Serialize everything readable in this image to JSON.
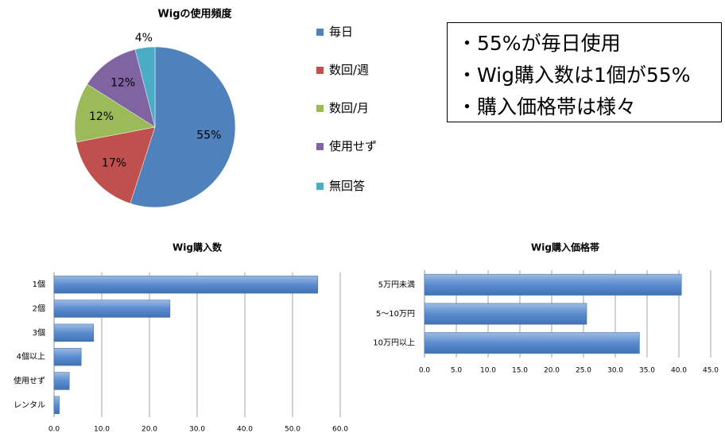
{
  "chart_data": [
    {
      "type": "pie",
      "title": "Wigの使用頻度",
      "categories": [
        "毎日",
        "数回/週",
        "数回/月",
        "使用せず",
        "無回答"
      ],
      "values": [
        55,
        17,
        12,
        12,
        4
      ],
      "value_labels": [
        "55%",
        "17%",
        "12%",
        "12%",
        "4%"
      ],
      "colors": [
        "#4f81bd",
        "#c0504d",
        "#9bbb59",
        "#8064a2",
        "#4bacc6"
      ],
      "legend": "right"
    },
    {
      "type": "bar",
      "orientation": "horizontal",
      "title": "Wig購入数",
      "categories": [
        "1個",
        "2個",
        "3個",
        "4個以上",
        "使用せず",
        "レンタル"
      ],
      "values": [
        55.3,
        24.3,
        8.3,
        5.7,
        3.2,
        1.1
      ],
      "color": "#4f81bd",
      "grid": true,
      "xlim": [
        0,
        60
      ],
      "xticks": [
        {
          "value": 0,
          "label": "0.0"
        },
        {
          "value": 10,
          "label": "10.0"
        },
        {
          "value": 20,
          "label": "20.0"
        },
        {
          "value": 30,
          "label": "30.0"
        },
        {
          "value": 40,
          "label": "40.0"
        },
        {
          "value": 50,
          "label": "50.0"
        },
        {
          "value": 60,
          "label": "60.0"
        }
      ]
    },
    {
      "type": "bar",
      "orientation": "horizontal",
      "title": "Wig購入価格帯",
      "categories": [
        "5万円未満",
        "5〜10万円",
        "10万円以上"
      ],
      "values": [
        40.4,
        25.5,
        33.8
      ],
      "color": "#4f81bd",
      "grid": true,
      "xlim": [
        0,
        45
      ],
      "xticks": [
        {
          "value": 0,
          "label": "0.0"
        },
        {
          "value": 5,
          "label": "5.0"
        },
        {
          "value": 10,
          "label": "10.0"
        },
        {
          "value": 15,
          "label": "15.0"
        },
        {
          "value": 20,
          "label": "20.0"
        },
        {
          "value": 25,
          "label": "25.0"
        },
        {
          "value": 30,
          "label": "30.0"
        },
        {
          "value": 35,
          "label": "35.0"
        },
        {
          "value": 40,
          "label": "40.0"
        },
        {
          "value": 45,
          "label": "45.0"
        }
      ]
    }
  ],
  "notes": {
    "lines": [
      "・55%が毎日使用",
      "・Wig購入数は1個が55%",
      "・購入価格帯は様々"
    ]
  }
}
